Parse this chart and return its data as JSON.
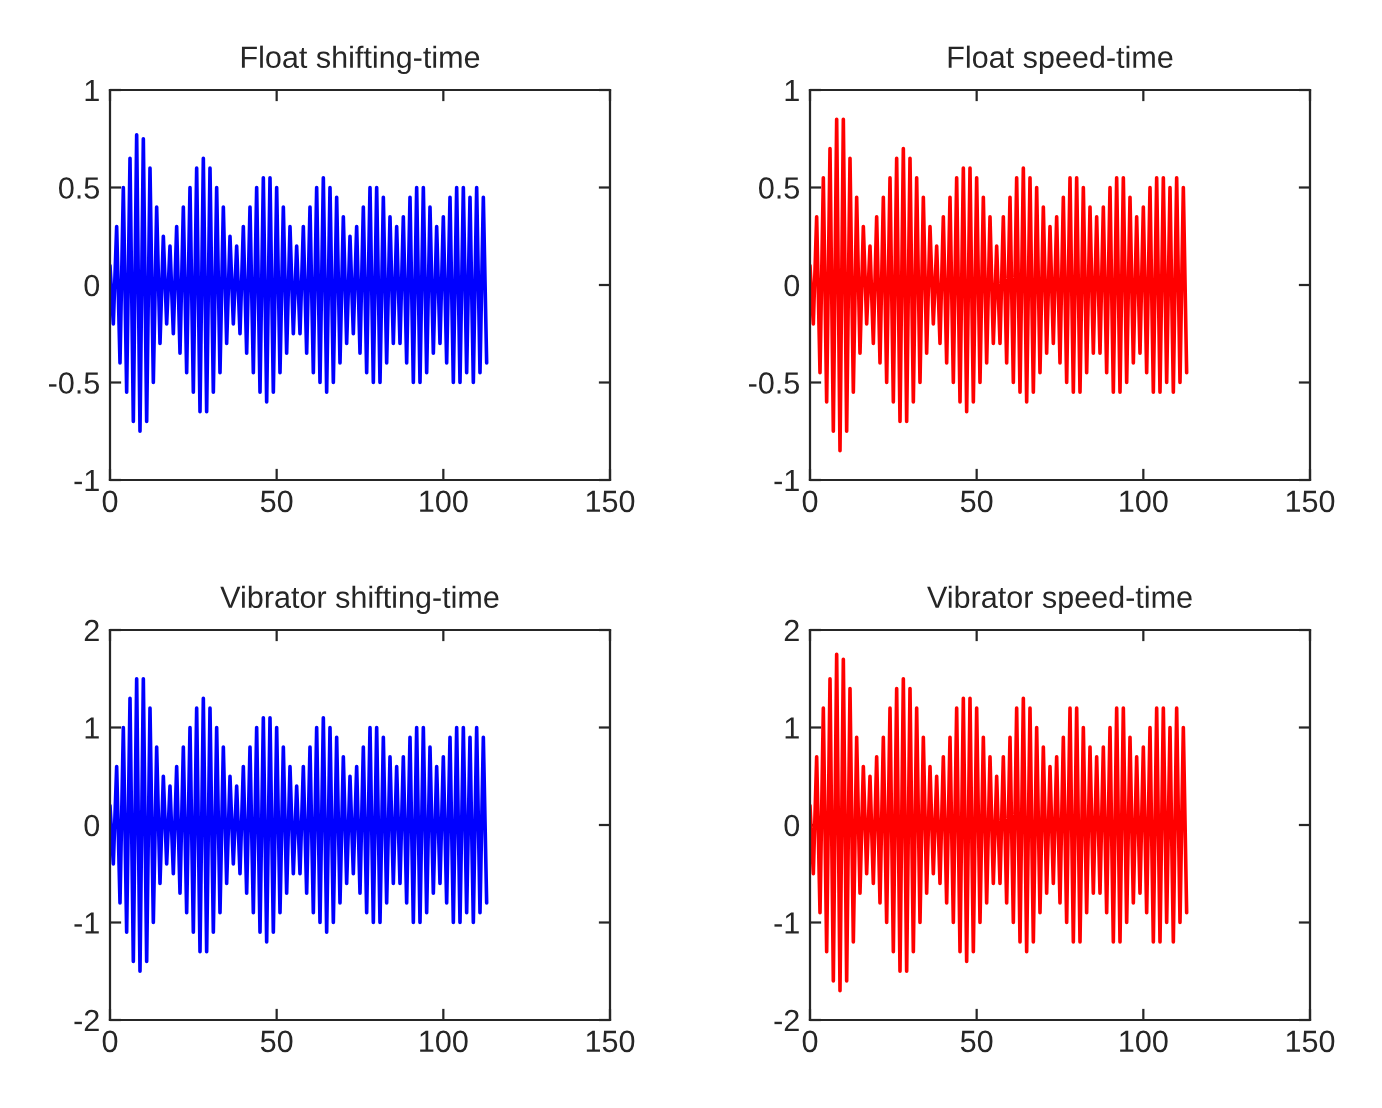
{
  "chart_data": [
    {
      "type": "line",
      "title": "Float shifting-time",
      "xlim": [
        0,
        150
      ],
      "xticks": [
        0,
        50,
        100,
        150
      ],
      "ylim": [
        -1,
        1
      ],
      "yticks": [
        -1,
        -0.5,
        0,
        0.5,
        1
      ],
      "grid": false,
      "x": [
        0,
        1,
        2,
        3,
        4,
        5,
        6,
        7,
        8,
        9,
        10,
        11,
        12,
        13,
        14,
        15,
        16,
        17,
        18,
        19,
        20,
        21,
        22,
        23,
        24,
        25,
        26,
        27,
        28,
        29,
        30,
        31,
        32,
        33,
        34,
        35,
        36,
        37,
        38,
        39,
        40,
        41,
        42,
        43,
        44,
        45,
        46,
        47,
        48,
        49,
        50,
        51,
        52,
        53,
        54,
        55,
        56,
        57,
        58,
        59,
        60,
        61,
        62,
        63,
        64,
        65,
        66,
        67,
        68,
        69,
        70,
        71,
        72,
        73,
        74,
        75,
        76,
        77,
        78,
        79,
        80,
        81,
        82,
        83,
        84,
        85,
        86,
        87,
        88,
        89,
        90,
        91,
        92,
        93,
        94,
        95,
        96,
        97,
        98,
        99,
        100,
        101,
        102,
        103,
        104,
        105,
        106,
        107,
        108,
        109,
        110,
        111,
        112,
        113
      ],
      "series": [
        {
          "color": "#0000ff",
          "values": [
            0.1,
            -0.2,
            0.3,
            -0.4,
            0.5,
            -0.55,
            0.65,
            -0.7,
            0.77,
            -0.75,
            0.75,
            -0.7,
            0.6,
            -0.5,
            0.4,
            -0.3,
            0.25,
            -0.2,
            0.2,
            -0.25,
            0.3,
            -0.35,
            0.4,
            -0.45,
            0.5,
            -0.55,
            0.6,
            -0.65,
            0.65,
            -0.65,
            0.6,
            -0.55,
            0.5,
            -0.45,
            0.4,
            -0.3,
            0.25,
            -0.2,
            0.2,
            -0.25,
            0.3,
            -0.35,
            0.4,
            -0.45,
            0.5,
            -0.55,
            0.55,
            -0.6,
            0.55,
            -0.55,
            0.5,
            -0.45,
            0.4,
            -0.35,
            0.3,
            -0.25,
            0.2,
            -0.25,
            0.3,
            -0.35,
            0.4,
            -0.45,
            0.5,
            -0.5,
            0.55,
            -0.55,
            0.5,
            -0.5,
            0.45,
            -0.4,
            0.35,
            -0.3,
            0.25,
            -0.25,
            0.3,
            -0.35,
            0.4,
            -0.45,
            0.5,
            -0.5,
            0.5,
            -0.5,
            0.45,
            -0.4,
            0.35,
            -0.3,
            0.3,
            -0.3,
            0.35,
            -0.4,
            0.45,
            -0.5,
            0.5,
            -0.5,
            0.5,
            -0.45,
            0.4,
            -0.35,
            0.3,
            -0.3,
            0.35,
            -0.4,
            0.45,
            -0.5,
            0.5,
            -0.5,
            0.5,
            -0.45,
            0.45,
            -0.5,
            0.5,
            -0.45,
            0.45,
            -0.4
          ]
        }
      ]
    },
    {
      "type": "line",
      "title": "Float speed-time",
      "xlim": [
        0,
        150
      ],
      "xticks": [
        0,
        50,
        100,
        150
      ],
      "ylim": [
        -1,
        1
      ],
      "yticks": [
        -1,
        -0.5,
        0,
        0.5,
        1
      ],
      "grid": false,
      "x": [
        0,
        1,
        2,
        3,
        4,
        5,
        6,
        7,
        8,
        9,
        10,
        11,
        12,
        13,
        14,
        15,
        16,
        17,
        18,
        19,
        20,
        21,
        22,
        23,
        24,
        25,
        26,
        27,
        28,
        29,
        30,
        31,
        32,
        33,
        34,
        35,
        36,
        37,
        38,
        39,
        40,
        41,
        42,
        43,
        44,
        45,
        46,
        47,
        48,
        49,
        50,
        51,
        52,
        53,
        54,
        55,
        56,
        57,
        58,
        59,
        60,
        61,
        62,
        63,
        64,
        65,
        66,
        67,
        68,
        69,
        70,
        71,
        72,
        73,
        74,
        75,
        76,
        77,
        78,
        79,
        80,
        81,
        82,
        83,
        84,
        85,
        86,
        87,
        88,
        89,
        90,
        91,
        92,
        93,
        94,
        95,
        96,
        97,
        98,
        99,
        100,
        101,
        102,
        103,
        104,
        105,
        106,
        107,
        108,
        109,
        110,
        111,
        112,
        113
      ],
      "series": [
        {
          "color": "#ff0000",
          "values": [
            0.1,
            -0.2,
            0.35,
            -0.45,
            0.55,
            -0.6,
            0.7,
            -0.75,
            0.85,
            -0.85,
            0.85,
            -0.75,
            0.65,
            -0.55,
            0.45,
            -0.35,
            0.3,
            -0.2,
            0.2,
            -0.3,
            0.35,
            -0.4,
            0.45,
            -0.5,
            0.55,
            -0.6,
            0.65,
            -0.7,
            0.7,
            -0.7,
            0.65,
            -0.6,
            0.55,
            -0.5,
            0.45,
            -0.35,
            0.3,
            -0.2,
            0.2,
            -0.3,
            0.35,
            -0.4,
            0.45,
            -0.5,
            0.55,
            -0.6,
            0.6,
            -0.65,
            0.6,
            -0.6,
            0.55,
            -0.5,
            0.45,
            -0.4,
            0.35,
            -0.3,
            0.2,
            -0.3,
            0.35,
            -0.4,
            0.45,
            -0.5,
            0.55,
            -0.55,
            0.6,
            -0.6,
            0.55,
            -0.55,
            0.5,
            -0.45,
            0.4,
            -0.35,
            0.3,
            -0.3,
            0.35,
            -0.4,
            0.45,
            -0.5,
            0.55,
            -0.55,
            0.55,
            -0.55,
            0.5,
            -0.45,
            0.4,
            -0.35,
            0.35,
            -0.35,
            0.4,
            -0.45,
            0.5,
            -0.55,
            0.55,
            -0.55,
            0.55,
            -0.5,
            0.45,
            -0.4,
            0.35,
            -0.35,
            0.4,
            -0.45,
            0.5,
            -0.55,
            0.55,
            -0.55,
            0.55,
            -0.5,
            0.5,
            -0.55,
            0.55,
            -0.5,
            0.5,
            -0.45
          ]
        }
      ]
    },
    {
      "type": "line",
      "title": "Vibrator shifting-time",
      "xlim": [
        0,
        150
      ],
      "xticks": [
        0,
        50,
        100,
        150
      ],
      "ylim": [
        -2,
        2
      ],
      "yticks": [
        -2,
        -1,
        0,
        1,
        2
      ],
      "grid": false,
      "x": [
        0,
        1,
        2,
        3,
        4,
        5,
        6,
        7,
        8,
        9,
        10,
        11,
        12,
        13,
        14,
        15,
        16,
        17,
        18,
        19,
        20,
        21,
        22,
        23,
        24,
        25,
        26,
        27,
        28,
        29,
        30,
        31,
        32,
        33,
        34,
        35,
        36,
        37,
        38,
        39,
        40,
        41,
        42,
        43,
        44,
        45,
        46,
        47,
        48,
        49,
        50,
        51,
        52,
        53,
        54,
        55,
        56,
        57,
        58,
        59,
        60,
        61,
        62,
        63,
        64,
        65,
        66,
        67,
        68,
        69,
        70,
        71,
        72,
        73,
        74,
        75,
        76,
        77,
        78,
        79,
        80,
        81,
        82,
        83,
        84,
        85,
        86,
        87,
        88,
        89,
        90,
        91,
        92,
        93,
        94,
        95,
        96,
        97,
        98,
        99,
        100,
        101,
        102,
        103,
        104,
        105,
        106,
        107,
        108,
        109,
        110,
        111,
        112,
        113
      ],
      "series": [
        {
          "color": "#0000ff",
          "values": [
            0.2,
            -0.4,
            0.6,
            -0.8,
            1.0,
            -1.1,
            1.3,
            -1.4,
            1.5,
            -1.5,
            1.5,
            -1.4,
            1.2,
            -1.0,
            0.8,
            -0.6,
            0.5,
            -0.4,
            0.4,
            -0.5,
            0.6,
            -0.7,
            0.8,
            -0.9,
            1.0,
            -1.1,
            1.2,
            -1.3,
            1.3,
            -1.3,
            1.2,
            -1.1,
            1.0,
            -0.9,
            0.8,
            -0.6,
            0.5,
            -0.4,
            0.4,
            -0.5,
            0.6,
            -0.7,
            0.8,
            -0.9,
            1.0,
            -1.1,
            1.1,
            -1.2,
            1.1,
            -1.1,
            1.0,
            -0.9,
            0.8,
            -0.7,
            0.6,
            -0.5,
            0.4,
            -0.5,
            0.6,
            -0.7,
            0.8,
            -0.9,
            1.0,
            -1.0,
            1.1,
            -1.1,
            1.0,
            -1.0,
            0.9,
            -0.8,
            0.7,
            -0.6,
            0.5,
            -0.5,
            0.6,
            -0.7,
            0.8,
            -0.9,
            1.0,
            -1.0,
            1.0,
            -1.0,
            0.9,
            -0.8,
            0.7,
            -0.6,
            0.6,
            -0.6,
            0.7,
            -0.8,
            0.9,
            -1.0,
            1.0,
            -1.0,
            1.0,
            -0.9,
            0.8,
            -0.7,
            0.6,
            -0.6,
            0.7,
            -0.8,
            0.9,
            -1.0,
            1.0,
            -1.0,
            1.0,
            -0.9,
            0.9,
            -1.0,
            1.0,
            -0.9,
            0.9,
            -0.8
          ]
        }
      ]
    },
    {
      "type": "line",
      "title": "Vibrator speed-time",
      "xlim": [
        0,
        150
      ],
      "xticks": [
        0,
        50,
        100,
        150
      ],
      "ylim": [
        -2,
        2
      ],
      "yticks": [
        -2,
        -1,
        0,
        1,
        2
      ],
      "grid": false,
      "x": [
        0,
        1,
        2,
        3,
        4,
        5,
        6,
        7,
        8,
        9,
        10,
        11,
        12,
        13,
        14,
        15,
        16,
        17,
        18,
        19,
        20,
        21,
        22,
        23,
        24,
        25,
        26,
        27,
        28,
        29,
        30,
        31,
        32,
        33,
        34,
        35,
        36,
        37,
        38,
        39,
        40,
        41,
        42,
        43,
        44,
        45,
        46,
        47,
        48,
        49,
        50,
        51,
        52,
        53,
        54,
        55,
        56,
        57,
        58,
        59,
        60,
        61,
        62,
        63,
        64,
        65,
        66,
        67,
        68,
        69,
        70,
        71,
        72,
        73,
        74,
        75,
        76,
        77,
        78,
        79,
        80,
        81,
        82,
        83,
        84,
        85,
        86,
        87,
        88,
        89,
        90,
        91,
        92,
        93,
        94,
        95,
        96,
        97,
        98,
        99,
        100,
        101,
        102,
        103,
        104,
        105,
        106,
        107,
        108,
        109,
        110,
        111,
        112,
        113
      ],
      "series": [
        {
          "color": "#ff0000",
          "values": [
            0.2,
            -0.5,
            0.7,
            -0.9,
            1.2,
            -1.3,
            1.5,
            -1.6,
            1.75,
            -1.7,
            1.7,
            -1.6,
            1.4,
            -1.2,
            0.9,
            -0.7,
            0.6,
            -0.5,
            0.5,
            -0.6,
            0.7,
            -0.8,
            0.9,
            -1.0,
            1.2,
            -1.3,
            1.4,
            -1.5,
            1.5,
            -1.5,
            1.4,
            -1.3,
            1.2,
            -1.0,
            0.9,
            -0.7,
            0.6,
            -0.5,
            0.5,
            -0.6,
            0.7,
            -0.8,
            0.9,
            -1.0,
            1.2,
            -1.3,
            1.3,
            -1.4,
            1.3,
            -1.3,
            1.2,
            -1.0,
            0.9,
            -0.8,
            0.7,
            -0.6,
            0.5,
            -0.6,
            0.7,
            -0.8,
            0.9,
            -1.0,
            1.2,
            -1.2,
            1.3,
            -1.3,
            1.2,
            -1.2,
            1.0,
            -0.9,
            0.8,
            -0.7,
            0.6,
            -0.6,
            0.7,
            -0.8,
            0.9,
            -1.0,
            1.2,
            -1.2,
            1.2,
            -1.2,
            1.0,
            -0.9,
            0.8,
            -0.7,
            0.7,
            -0.7,
            0.8,
            -0.9,
            1.0,
            -1.2,
            1.2,
            -1.2,
            1.2,
            -1.0,
            0.9,
            -0.8,
            0.7,
            -0.7,
            0.8,
            -0.9,
            1.0,
            -1.2,
            1.2,
            -1.2,
            1.2,
            -1.0,
            1.0,
            -1.2,
            1.2,
            -1.0,
            1.0,
            -0.9
          ]
        }
      ]
    }
  ]
}
